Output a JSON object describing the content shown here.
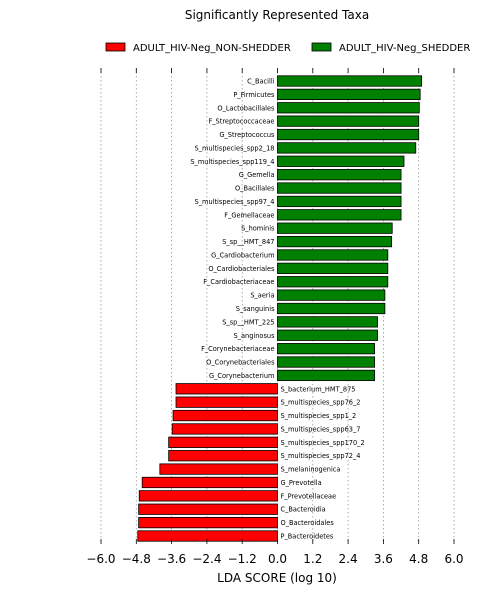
{
  "chart_data": {
    "type": "bar",
    "orientation": "horizontal",
    "title": "Significantly Represented Taxa",
    "xlabel": "LDA SCORE (log 10)",
    "ylabel": "",
    "xlim": [
      -6.0,
      6.0
    ],
    "xticks": [
      -6.0,
      -4.8,
      -3.6,
      -2.4,
      -1.2,
      0.0,
      1.2,
      2.4,
      3.6,
      4.8,
      6.0
    ],
    "xtick_labels": [
      "−6.0",
      "−4.8",
      "−3.6",
      "−2.4",
      "−1.2",
      "0.0",
      "1.2",
      "2.4",
      "3.6",
      "4.8",
      "6.0"
    ],
    "grid": "vertical dotted",
    "legend_position": "top",
    "legend": [
      {
        "name": "ADULT_HIV-Neg_NON-SHEDDER",
        "color": "#ff0000"
      },
      {
        "name": "ADULT_HIV-Neg_SHEDDER",
        "color": "#008000"
      }
    ],
    "bars": [
      {
        "label": "C_Bacilli",
        "value": 4.9,
        "group": "ADULT_HIV-Neg_SHEDDER"
      },
      {
        "label": "P_Firmicutes",
        "value": 4.85,
        "group": "ADULT_HIV-Neg_SHEDDER"
      },
      {
        "label": "O_Lactobacillales",
        "value": 4.82,
        "group": "ADULT_HIV-Neg_SHEDDER"
      },
      {
        "label": "F_Streptococcaceae",
        "value": 4.8,
        "group": "ADULT_HIV-Neg_SHEDDER"
      },
      {
        "label": "G_Streptococcus",
        "value": 4.8,
        "group": "ADULT_HIV-Neg_SHEDDER"
      },
      {
        "label": "S_multispecies_spp2_18",
        "value": 4.7,
        "group": "ADULT_HIV-Neg_SHEDDER"
      },
      {
        "label": "S_multispecies_spp119_4",
        "value": 4.3,
        "group": "ADULT_HIV-Neg_SHEDDER"
      },
      {
        "label": "G_Gemella",
        "value": 4.2,
        "group": "ADULT_HIV-Neg_SHEDDER"
      },
      {
        "label": "O_Bacillales",
        "value": 4.2,
        "group": "ADULT_HIV-Neg_SHEDDER"
      },
      {
        "label": "S_multispecies_spp97_4",
        "value": 4.2,
        "group": "ADULT_HIV-Neg_SHEDDER"
      },
      {
        "label": "F_Gemellaceae",
        "value": 4.2,
        "group": "ADULT_HIV-Neg_SHEDDER"
      },
      {
        "label": "S_hominis",
        "value": 3.9,
        "group": "ADULT_HIV-Neg_SHEDDER"
      },
      {
        "label": "S_sp__HMT_847",
        "value": 3.88,
        "group": "ADULT_HIV-Neg_SHEDDER"
      },
      {
        "label": "G_Cardiobacterium",
        "value": 3.75,
        "group": "ADULT_HIV-Neg_SHEDDER"
      },
      {
        "label": "O_Cardiobacteriales",
        "value": 3.75,
        "group": "ADULT_HIV-Neg_SHEDDER"
      },
      {
        "label": "F_Cardiobacteriaceae",
        "value": 3.75,
        "group": "ADULT_HIV-Neg_SHEDDER"
      },
      {
        "label": "S_aeria",
        "value": 3.65,
        "group": "ADULT_HIV-Neg_SHEDDER"
      },
      {
        "label": "S_sanguinis",
        "value": 3.65,
        "group": "ADULT_HIV-Neg_SHEDDER"
      },
      {
        "label": "S_sp__HMT_225",
        "value": 3.4,
        "group": "ADULT_HIV-Neg_SHEDDER"
      },
      {
        "label": "S_anginosus",
        "value": 3.4,
        "group": "ADULT_HIV-Neg_SHEDDER"
      },
      {
        "label": "F_Corynebacteriaceae",
        "value": 3.3,
        "group": "ADULT_HIV-Neg_SHEDDER"
      },
      {
        "label": "O_Corynebacteriales",
        "value": 3.3,
        "group": "ADULT_HIV-Neg_SHEDDER"
      },
      {
        "label": "G_Corynebacterium",
        "value": 3.3,
        "group": "ADULT_HIV-Neg_SHEDDER"
      },
      {
        "label": "S_bacterium_HMT_875",
        "value": -3.45,
        "group": "ADULT_HIV-Neg_NON-SHEDDER"
      },
      {
        "label": "S_multispecies_spp76_2",
        "value": -3.45,
        "group": "ADULT_HIV-Neg_NON-SHEDDER"
      },
      {
        "label": "S_multispecies_spp1_2",
        "value": -3.55,
        "group": "ADULT_HIV-Neg_NON-SHEDDER"
      },
      {
        "label": "S_multispecies_spp63_7",
        "value": -3.58,
        "group": "ADULT_HIV-Neg_NON-SHEDDER"
      },
      {
        "label": "S_multispecies_spp170_2",
        "value": -3.7,
        "group": "ADULT_HIV-Neg_NON-SHEDDER"
      },
      {
        "label": "S_multispecies_spp72_4",
        "value": -3.7,
        "group": "ADULT_HIV-Neg_NON-SHEDDER"
      },
      {
        "label": "S_melaninogenica",
        "value": -4.0,
        "group": "ADULT_HIV-Neg_NON-SHEDDER"
      },
      {
        "label": "G_Prevotella",
        "value": -4.6,
        "group": "ADULT_HIV-Neg_NON-SHEDDER"
      },
      {
        "label": "F_Prevotellaceae",
        "value": -4.7,
        "group": "ADULT_HIV-Neg_NON-SHEDDER"
      },
      {
        "label": "C_Bacteroidia",
        "value": -4.72,
        "group": "ADULT_HIV-Neg_NON-SHEDDER"
      },
      {
        "label": "O_Bacteroidales",
        "value": -4.72,
        "group": "ADULT_HIV-Neg_NON-SHEDDER"
      },
      {
        "label": "P_Bacteroidetes",
        "value": -4.75,
        "group": "ADULT_HIV-Neg_NON-SHEDDER"
      }
    ]
  }
}
